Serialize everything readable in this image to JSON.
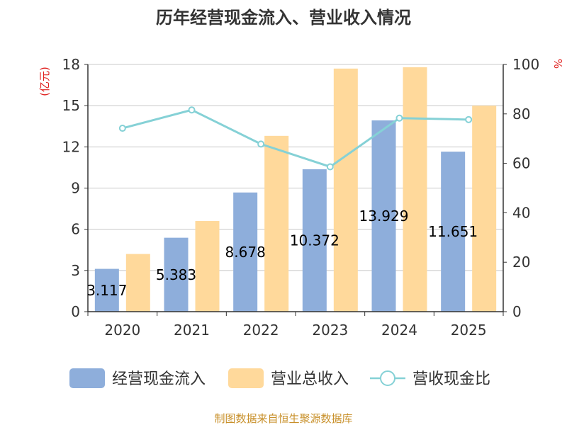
{
  "chart_data": {
    "type": "bar",
    "title": "历年经营现金流入、营业收入情况",
    "categories": [
      "2020",
      "2021",
      "2022",
      "2023",
      "2024",
      "2025"
    ],
    "left_axis": {
      "unit": "(亿元)",
      "ylim": [
        0,
        18
      ],
      "ticks": [
        "0",
        "3",
        "6",
        "9",
        "12",
        "15",
        "18"
      ]
    },
    "right_axis": {
      "unit": "%",
      "ylim": [
        0,
        100
      ],
      "ticks": [
        "0",
        "20",
        "40",
        "60",
        "80",
        "100"
      ]
    },
    "series": [
      {
        "name": "经营现金流入",
        "type": "bar",
        "axis": "left",
        "color": "#8eaedb",
        "values": [
          3.117,
          5.383,
          8.678,
          10.372,
          13.929,
          11.651
        ],
        "data_labels": [
          "3.117",
          "5.383",
          "8.678",
          "10.372",
          "13.929",
          "11.651"
        ]
      },
      {
        "name": "营业总收入",
        "type": "bar",
        "axis": "left",
        "color": "#ffd99b",
        "values": [
          4.2,
          6.6,
          12.8,
          17.7,
          17.8,
          15.0
        ]
      },
      {
        "name": "营收现金比",
        "type": "line",
        "axis": "right",
        "color": "#85d1d6",
        "values": [
          74.2,
          81.6,
          67.8,
          58.6,
          78.3,
          77.7
        ]
      }
    ],
    "grid": true,
    "legend": "bottom",
    "source": "制图数据来自恒生聚源数据库"
  }
}
